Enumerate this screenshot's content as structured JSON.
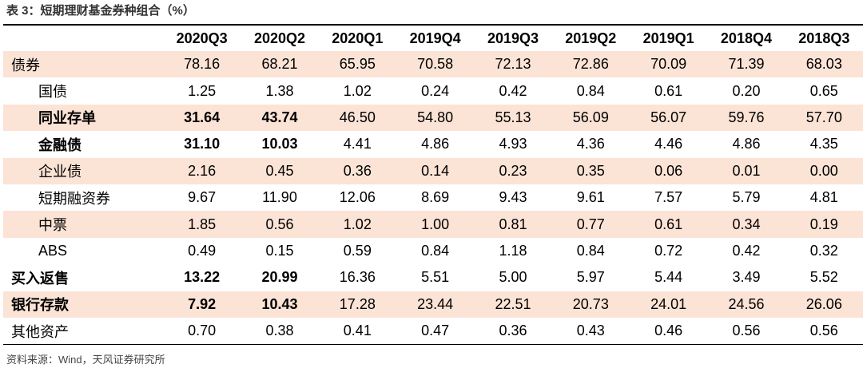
{
  "title": "表 3：短期理财基金券种组合（%）",
  "table": {
    "header": [
      "",
      "2020Q3",
      "2020Q2",
      "2020Q1",
      "2019Q4",
      "2019Q3",
      "2019Q2",
      "2019Q1",
      "2018Q4",
      "2018Q3"
    ],
    "rows": [
      [
        "债券",
        "78.16",
        "68.21",
        "65.95",
        "70.58",
        "72.13",
        "72.86",
        "70.09",
        "71.39",
        "68.03"
      ],
      [
        "国债",
        "1.25",
        "1.38",
        "1.02",
        "0.24",
        "0.42",
        "0.84",
        "0.61",
        "0.20",
        "0.65"
      ],
      [
        "同业存单",
        "31.64",
        "43.74",
        "46.50",
        "54.80",
        "55.13",
        "56.09",
        "56.07",
        "59.76",
        "57.70"
      ],
      [
        "金融债",
        "31.10",
        "10.03",
        "4.41",
        "4.86",
        "4.93",
        "4.36",
        "4.46",
        "4.86",
        "4.35"
      ],
      [
        "企业债",
        "2.16",
        "0.45",
        "0.36",
        "0.14",
        "0.23",
        "0.35",
        "0.06",
        "0.01",
        "0.00"
      ],
      [
        "短期融资券",
        "9.67",
        "11.90",
        "12.06",
        "8.69",
        "9.43",
        "9.61",
        "7.57",
        "5.79",
        "4.81"
      ],
      [
        "中票",
        "1.85",
        "0.56",
        "1.02",
        "1.00",
        "0.81",
        "0.77",
        "0.61",
        "0.34",
        "0.19"
      ],
      [
        "ABS",
        "0.49",
        "0.15",
        "0.59",
        "0.84",
        "1.18",
        "0.84",
        "0.72",
        "0.42",
        "0.32"
      ],
      [
        "买入返售",
        "13.22",
        "20.99",
        "16.36",
        "5.51",
        "5.00",
        "5.97",
        "5.44",
        "3.49",
        "5.52"
      ],
      [
        "银行存款",
        "7.92",
        "10.43",
        "17.28",
        "23.44",
        "22.51",
        "20.73",
        "24.01",
        "24.56",
        "26.06"
      ],
      [
        "其他资产",
        "0.70",
        "0.38",
        "0.41",
        "0.47",
        "0.36",
        "0.43",
        "0.46",
        "0.56",
        "0.56"
      ]
    ]
  },
  "source": "资料来源：Wind，天风证券研究所"
}
